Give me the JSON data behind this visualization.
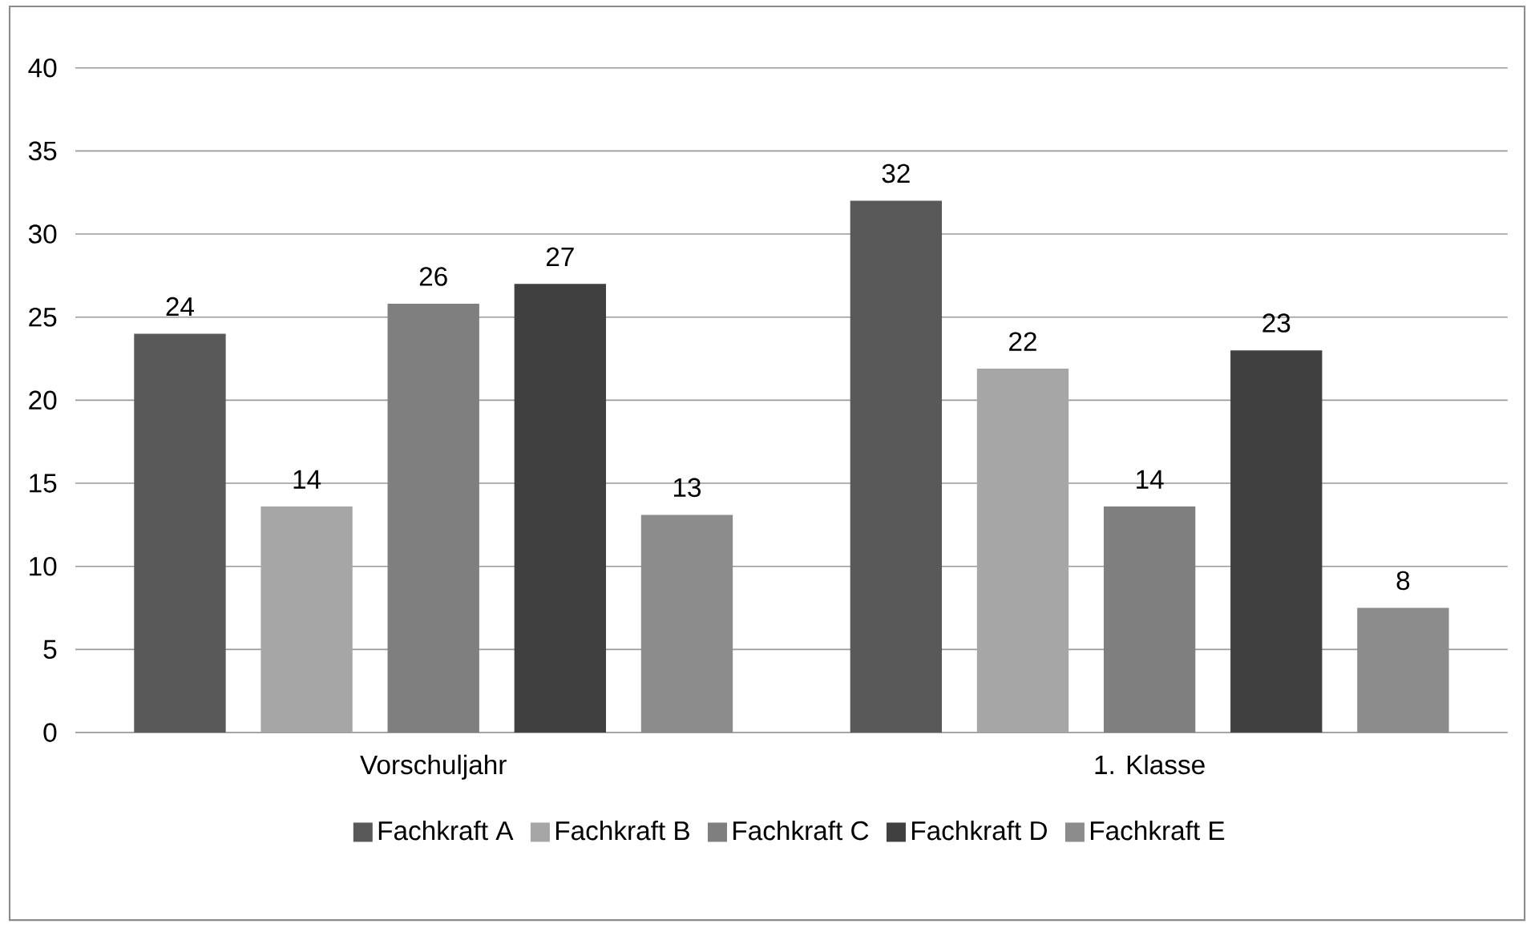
{
  "chart_data": {
    "type": "bar",
    "categories": [
      "Vorschuljahr",
      "1. Klasse"
    ],
    "series": [
      {
        "name": "Fachkraft A",
        "color": "#595959",
        "values": [
          24,
          32
        ],
        "value_labels": [
          "24",
          "32"
        ]
      },
      {
        "name": "Fachkraft B",
        "color": "#a6a6a6",
        "values": [
          13.6,
          21.9
        ],
        "value_labels": [
          "14",
          "22"
        ]
      },
      {
        "name": "Fachkraft C",
        "color": "#7f7f7f",
        "values": [
          25.8,
          13.6
        ],
        "value_labels": [
          "26",
          "14"
        ]
      },
      {
        "name": "Fachkraft D",
        "color": "#404040",
        "values": [
          27,
          23
        ],
        "value_labels": [
          "27",
          "23"
        ]
      },
      {
        "name": "Fachkraft E",
        "color": "#8c8c8c",
        "values": [
          13.1,
          7.5
        ],
        "value_labels": [
          "13",
          "8"
        ]
      }
    ],
    "ylim": [
      0,
      40
    ],
    "yticks": [
      0,
      5,
      10,
      15,
      20,
      25,
      30,
      35,
      40
    ],
    "grid": "y",
    "legend": "bottom"
  }
}
